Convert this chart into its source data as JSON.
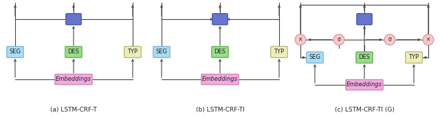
{
  "fig_width": 6.4,
  "fig_height": 1.71,
  "dpi": 100,
  "background": "#ffffff",
  "caption_a": "(a) LSTM-CRF-T",
  "caption_b": "(b) LSTM-CRF-TI",
  "caption_c": "(c) LSTM-CRF-TI (G)",
  "box_blue_fill": "#6674cc",
  "box_blue_edge": "#4455aa",
  "box_seg_fill": "#aaddf5",
  "box_seg_edge": "#77aacc",
  "box_des_fill": "#99dd88",
  "box_des_edge": "#55aa44",
  "box_typ_fill": "#eeeebb",
  "box_typ_edge": "#aaaa66",
  "box_emb_fill": "#f0aadd",
  "box_emb_edge": "#cc77bb",
  "gate_fill": "#f8c8cc",
  "gate_edge": "#cc8888",
  "line_color": "#444444",
  "text_color": "#222222",
  "lw": 0.8,
  "arr_scale": 5
}
